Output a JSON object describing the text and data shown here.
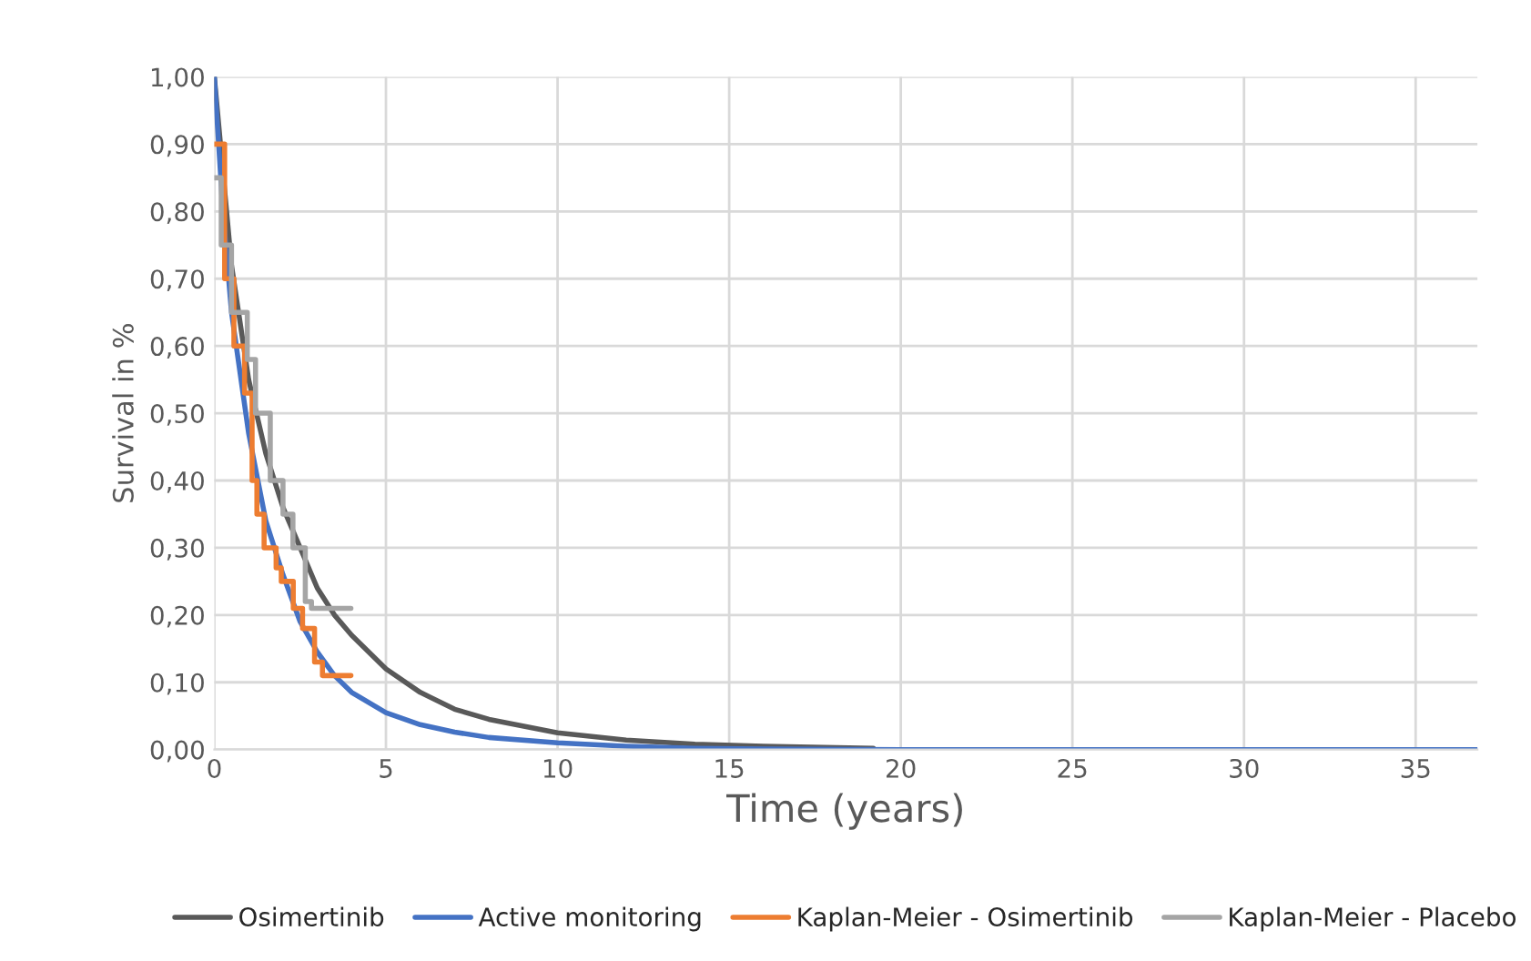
{
  "chart_data": {
    "type": "line",
    "xlabel": "Time (years)",
    "ylabel": "Survival in %",
    "xlim": [
      0,
      36.8
    ],
    "ylim": [
      0,
      1
    ],
    "xticks": [
      0,
      5,
      10,
      15,
      20,
      25,
      30,
      35
    ],
    "yticks": [
      {
        "value": 0,
        "label": "0,00"
      },
      {
        "value": 0.1,
        "label": "0,10"
      },
      {
        "value": 0.2,
        "label": "0,20"
      },
      {
        "value": 0.3,
        "label": "0,30"
      },
      {
        "value": 0.4,
        "label": "0,40"
      },
      {
        "value": 0.5,
        "label": "0,50"
      },
      {
        "value": 0.6,
        "label": "0,60"
      },
      {
        "value": 0.7,
        "label": "0,70"
      },
      {
        "value": 0.8,
        "label": "0,80"
      },
      {
        "value": 0.9,
        "label": "0,90"
      },
      {
        "value": 1,
        "label": "1,00"
      }
    ],
    "grid": true,
    "legend": "bottom",
    "marker": "none",
    "line_style": "solid",
    "series": [
      {
        "name": "Osimertinib",
        "color": "#595959",
        "x": [
          0,
          0.5,
          1,
          1.5,
          2,
          2.5,
          3,
          3.5,
          4,
          5,
          6,
          7,
          8,
          10,
          12,
          14,
          16,
          19.2
        ],
        "values": [
          1.0,
          0.72,
          0.55,
          0.44,
          0.36,
          0.3,
          0.24,
          0.2,
          0.17,
          0.12,
          0.085,
          0.06,
          0.045,
          0.025,
          0.014,
          0.008,
          0.005,
          0.002
        ]
      },
      {
        "name": "Active monitoring",
        "color": "#4472c4",
        "x": [
          0,
          0.25,
          0.5,
          1,
          1.5,
          2,
          2.5,
          3,
          3.5,
          4,
          5,
          6,
          7,
          8,
          10,
          12,
          14,
          16,
          20,
          36.8
        ],
        "values": [
          1.0,
          0.8,
          0.65,
          0.47,
          0.34,
          0.26,
          0.19,
          0.145,
          0.11,
          0.085,
          0.055,
          0.037,
          0.026,
          0.018,
          0.01,
          0.005,
          0.002,
          0.001,
          0,
          0
        ]
      },
      {
        "name": "Kaplan-Meier - Osimertinib",
        "type": "step",
        "color": "#ed7d31",
        "x": [
          0,
          0.3,
          0.57,
          0.88,
          1.1,
          1.24,
          1.45,
          1.8,
          1.95,
          2.3,
          2.57,
          2.92,
          3.15,
          3.98
        ],
        "values": [
          0.9,
          0.7,
          0.6,
          0.53,
          0.4,
          0.35,
          0.3,
          0.27,
          0.25,
          0.21,
          0.18,
          0.13,
          0.11,
          0.11
        ]
      },
      {
        "name": "Kaplan-Meier - Placebo",
        "type": "step",
        "color": "#a5a5a5",
        "x": [
          0,
          0.2,
          0.5,
          0.96,
          1.2,
          1.63,
          2.0,
          2.29,
          2.65,
          2.83,
          3.98
        ],
        "values": [
          0.85,
          0.75,
          0.65,
          0.58,
          0.5,
          0.4,
          0.35,
          0.3,
          0.22,
          0.21,
          0.21
        ]
      }
    ]
  }
}
